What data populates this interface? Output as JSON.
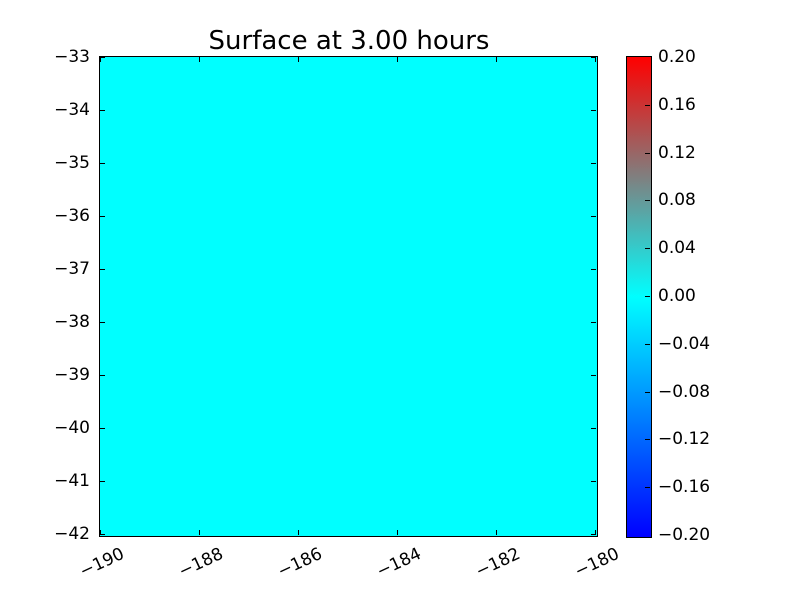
{
  "title": "Surface at 3.00 hours",
  "plot": {
    "fill_color": "#00FFFF",
    "border_color": "#000000",
    "background_color": "#FFFFFF"
  },
  "x_axis": {
    "tick_labels": [
      "−190",
      "−188",
      "−186",
      "−184",
      "−182",
      "−180"
    ],
    "label_rotation_deg": 25
  },
  "y_axis": {
    "tick_labels": [
      "−33",
      "−34",
      "−35",
      "−36",
      "−37",
      "−38",
      "−39",
      "−40",
      "−41",
      "−42"
    ]
  },
  "colorbar": {
    "tick_labels": [
      "0.20",
      "0.16",
      "0.12",
      "0.08",
      "0.04",
      "0.00",
      "−0.04",
      "−0.08",
      "−0.12",
      "−0.16",
      "−0.20"
    ],
    "top_color": "#FF0000",
    "mid_color": "#00FFFF",
    "bottom_color": "#0000FF",
    "border_color": "#000000"
  },
  "chart_data": {
    "type": "heatmap",
    "title": "Surface at 3.00 hours",
    "xlabel": "",
    "ylabel": "",
    "x_range": [
      -190,
      -180
    ],
    "y_range": [
      -42,
      -33
    ],
    "x_ticks": [
      -190,
      -188,
      -186,
      -184,
      -182,
      -180
    ],
    "y_ticks": [
      -42,
      -41,
      -40,
      -39,
      -38,
      -37,
      -36,
      -35,
      -34,
      -33
    ],
    "field": "uniform",
    "uniform_value": 0.0,
    "grid": false,
    "colorbar": {
      "position": "right",
      "vmin": -0.2,
      "vmax": 0.2,
      "tick_step": 0.04,
      "colormap_stops": [
        {
          "value": 0.2,
          "color": "#FF0000"
        },
        {
          "value": 0.0,
          "color": "#00FFFF"
        },
        {
          "value": -0.2,
          "color": "#0000FF"
        }
      ]
    }
  }
}
